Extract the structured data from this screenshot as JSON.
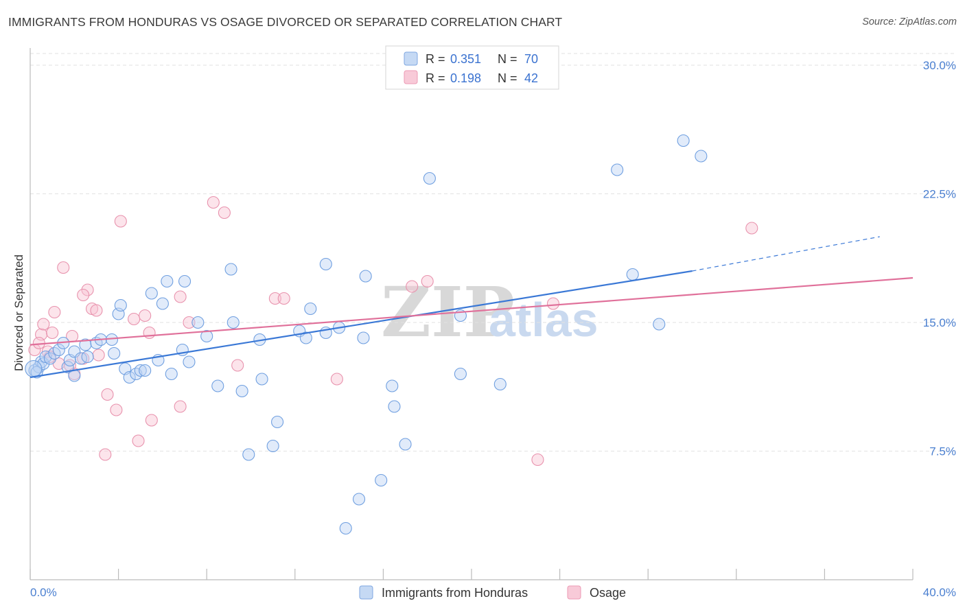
{
  "title": "IMMIGRANTS FROM HONDURAS VS OSAGE DIVORCED OR SEPARATED CORRELATION CHART",
  "source": "Source: ZipAtlas.com",
  "watermark": {
    "zip": "ZIP",
    "atlas": "atlas"
  },
  "legend_box": {
    "rows": [
      {
        "r_label": "R = ",
        "r_value": "0.351",
        "n_label": "N = ",
        "n_value": "70"
      },
      {
        "r_label": "R = ",
        "r_value": "0.198",
        "n_label": "N = ",
        "n_value": "42"
      }
    ]
  },
  "chart_data": {
    "type": "scatter",
    "title": "IMMIGRANTS FROM HONDURAS VS OSAGE DIVORCED OR SEPARATED CORRELATION CHART",
    "ylabel": "Divorced or Separated",
    "xlabel": "",
    "xlim": [
      0,
      40
    ],
    "ylim": [
      0,
      31
    ],
    "x_tick_labels": [
      "0.0%",
      "40.0%"
    ],
    "y_ticks": [
      7.5,
      15.0,
      22.5,
      30.0
    ],
    "y_tick_labels": [
      "7.5%",
      "15.0%",
      "22.5%",
      "30.0%"
    ],
    "grid": "horizontal dashed",
    "legend_position": "top-center",
    "colors": {
      "blue": "#6f9fe0",
      "blue_line": "#3a78d6",
      "pink": "#ef9ab5",
      "pink_line": "#e0709a"
    },
    "series": [
      {
        "name": "Immigrants from Honduras",
        "color": "#6f9fe0",
        "r": 0.351,
        "n": 70,
        "trend": {
          "x0": 0,
          "y0": 11.8,
          "x1": 30,
          "y1": 18.0,
          "dash_x1": 38.5,
          "dash_y1": 20.0
        },
        "points": [
          [
            0.2,
            12.2
          ],
          [
            0.4,
            12.4
          ],
          [
            0.5,
            12.7
          ],
          [
            0.6,
            12.6
          ],
          [
            0.7,
            13.0
          ],
          [
            0.9,
            12.9
          ],
          [
            1.1,
            13.2
          ],
          [
            1.3,
            13.4
          ],
          [
            1.5,
            13.8
          ],
          [
            1.7,
            12.4
          ],
          [
            1.8,
            12.8
          ],
          [
            2.0,
            11.9
          ],
          [
            2.0,
            13.3
          ],
          [
            2.3,
            12.9
          ],
          [
            2.5,
            13.7
          ],
          [
            2.6,
            13.0
          ],
          [
            3.0,
            13.8
          ],
          [
            3.2,
            14.0
          ],
          [
            3.7,
            14.0
          ],
          [
            3.8,
            13.2
          ],
          [
            4.0,
            15.5
          ],
          [
            4.1,
            16.0
          ],
          [
            4.3,
            12.3
          ],
          [
            4.5,
            11.8
          ],
          [
            4.8,
            12.0
          ],
          [
            5.0,
            12.2
          ],
          [
            5.2,
            12.2
          ],
          [
            5.5,
            16.7
          ],
          [
            5.8,
            12.8
          ],
          [
            6.0,
            16.1
          ],
          [
            6.2,
            17.4
          ],
          [
            6.4,
            12.0
          ],
          [
            6.9,
            13.4
          ],
          [
            7.0,
            17.4
          ],
          [
            7.2,
            12.7
          ],
          [
            7.6,
            15.0
          ],
          [
            8.0,
            14.2
          ],
          [
            8.5,
            11.3
          ],
          [
            9.1,
            18.1
          ],
          [
            9.2,
            15.0
          ],
          [
            9.6,
            11.0
          ],
          [
            9.9,
            7.3
          ],
          [
            10.5,
            11.7
          ],
          [
            11.0,
            7.8
          ],
          [
            11.2,
            9.2
          ],
          [
            12.2,
            14.5
          ],
          [
            12.5,
            14.1
          ],
          [
            13.4,
            14.4
          ],
          [
            12.7,
            15.8
          ],
          [
            13.4,
            18.4
          ],
          [
            14.0,
            14.7
          ],
          [
            14.3,
            3.0
          ],
          [
            14.9,
            4.7
          ],
          [
            15.1,
            14.1
          ],
          [
            15.2,
            17.7
          ],
          [
            15.9,
            5.8
          ],
          [
            16.4,
            11.3
          ],
          [
            16.5,
            10.1
          ],
          [
            17.0,
            7.9
          ],
          [
            18.1,
            23.4
          ],
          [
            19.5,
            12.0
          ],
          [
            19.5,
            15.4
          ],
          [
            21.3,
            11.4
          ],
          [
            26.6,
            23.9
          ],
          [
            27.3,
            17.8
          ],
          [
            28.5,
            14.9
          ],
          [
            29.6,
            25.6
          ],
          [
            30.4,
            24.7
          ],
          [
            0.3,
            12.1
          ],
          [
            10.4,
            14.0
          ]
        ]
      },
      {
        "name": "Osage",
        "color": "#ef9ab5",
        "r": 0.198,
        "n": 42,
        "trend": {
          "x0": 0,
          "y0": 13.7,
          "x1": 40,
          "y1": 17.6
        },
        "points": [
          [
            0.2,
            13.4
          ],
          [
            0.5,
            14.3
          ],
          [
            0.6,
            14.9
          ],
          [
            0.8,
            13.3
          ],
          [
            0.9,
            13.0
          ],
          [
            1.0,
            14.4
          ],
          [
            1.1,
            15.6
          ],
          [
            1.3,
            12.6
          ],
          [
            1.5,
            18.2
          ],
          [
            1.8,
            12.5
          ],
          [
            1.9,
            14.2
          ],
          [
            2.0,
            12.0
          ],
          [
            2.4,
            12.9
          ],
          [
            2.6,
            16.9
          ],
          [
            2.4,
            16.6
          ],
          [
            2.8,
            15.8
          ],
          [
            3.0,
            15.7
          ],
          [
            3.1,
            13.1
          ],
          [
            3.5,
            10.8
          ],
          [
            3.4,
            7.3
          ],
          [
            3.9,
            9.9
          ],
          [
            4.1,
            20.9
          ],
          [
            4.7,
            15.2
          ],
          [
            4.9,
            8.1
          ],
          [
            5.2,
            15.4
          ],
          [
            5.4,
            14.4
          ],
          [
            5.5,
            9.3
          ],
          [
            6.8,
            10.1
          ],
          [
            6.8,
            16.5
          ],
          [
            7.2,
            15.0
          ],
          [
            8.3,
            22.0
          ],
          [
            8.8,
            21.4
          ],
          [
            9.4,
            12.5
          ],
          [
            11.1,
            16.4
          ],
          [
            11.5,
            16.4
          ],
          [
            13.9,
            11.7
          ],
          [
            17.3,
            17.1
          ],
          [
            18.0,
            17.4
          ],
          [
            23.0,
            7.0
          ],
          [
            23.7,
            16.1
          ],
          [
            32.7,
            20.5
          ],
          [
            0.4,
            13.8
          ]
        ]
      }
    ]
  }
}
